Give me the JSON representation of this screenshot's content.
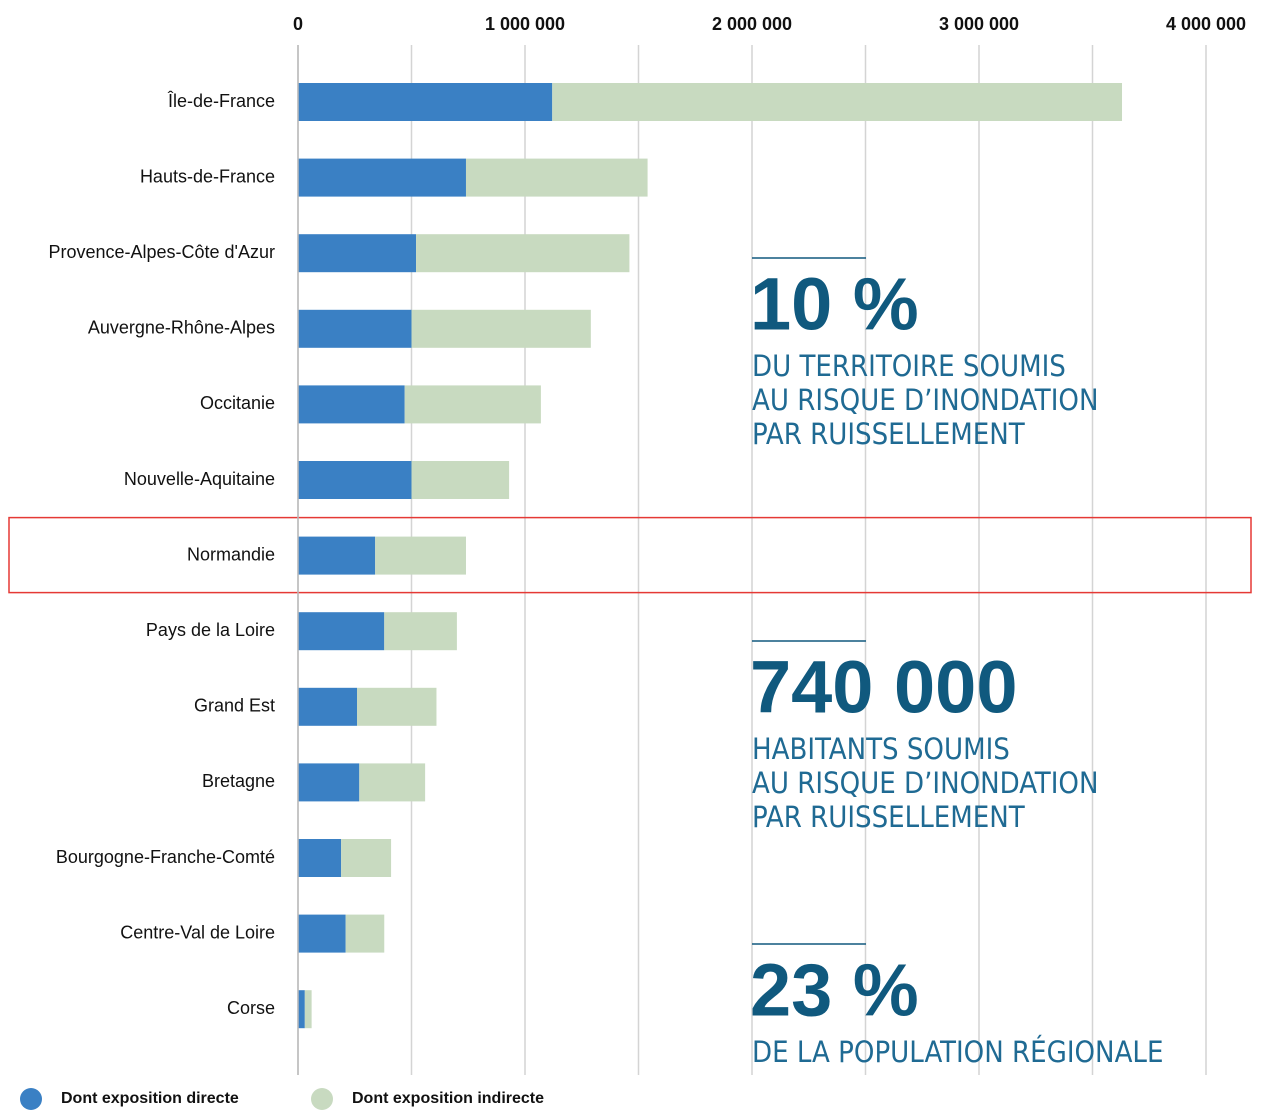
{
  "chart_data": {
    "type": "stacked_barh",
    "categories": [
      "Île-de-France",
      "Hauts-de-France",
      "Provence-Alpes-Côte d'Azur",
      "Auvergne-Rhône-Alpes",
      "Occitanie",
      "Nouvelle-Aquitaine",
      "Normandie",
      "Pays de la Loire",
      "Grand Est",
      "Bretagne",
      "Bourgogne-Franche-Comté",
      "Centre-Val de Loire",
      "Corse"
    ],
    "series": [
      {
        "name": "Dont exposition directe",
        "color": "#3a80c4",
        "values": [
          1120000,
          740000,
          520000,
          500000,
          470000,
          500000,
          340000,
          380000,
          260000,
          270000,
          190000,
          210000,
          30000
        ]
      },
      {
        "name": "Dont exposition indirecte",
        "color": "#c8dac0",
        "values": [
          2510000,
          800000,
          940000,
          790000,
          600000,
          430000,
          400000,
          320000,
          350000,
          290000,
          220000,
          170000,
          30000
        ]
      }
    ],
    "xlim": [
      0,
      4000000
    ],
    "xticks": [
      0,
      {
        "value": 1000000,
        "label": "1 000 000"
      },
      {
        "value": 2000000,
        "label": "2 000 000"
      },
      {
        "value": 3000000,
        "label": "3 000 000"
      },
      {
        "value": 4000000,
        "label": "4 000 000"
      }
    ],
    "minor_xticks": [
      500000,
      1500000,
      2500000,
      3500000
    ],
    "grid": true,
    "legend": "bottom-left",
    "highlight": "Normandie",
    "annotations": [
      {
        "stat": "10 %",
        "lines": [
          "DU TERRITOIRE SOUMIS",
          "AU RISQUE D’INONDATION",
          "PAR RUISSELLEMENT"
        ]
      },
      {
        "stat": "740 000",
        "lines": [
          "HABITANTS SOUMIS",
          "AU RISQUE D’INONDATION",
          "PAR RUISSELLEMENT"
        ]
      },
      {
        "stat": "23 %",
        "lines": [
          "DE LA POPULATION RÉGIONALE"
        ]
      }
    ]
  }
}
